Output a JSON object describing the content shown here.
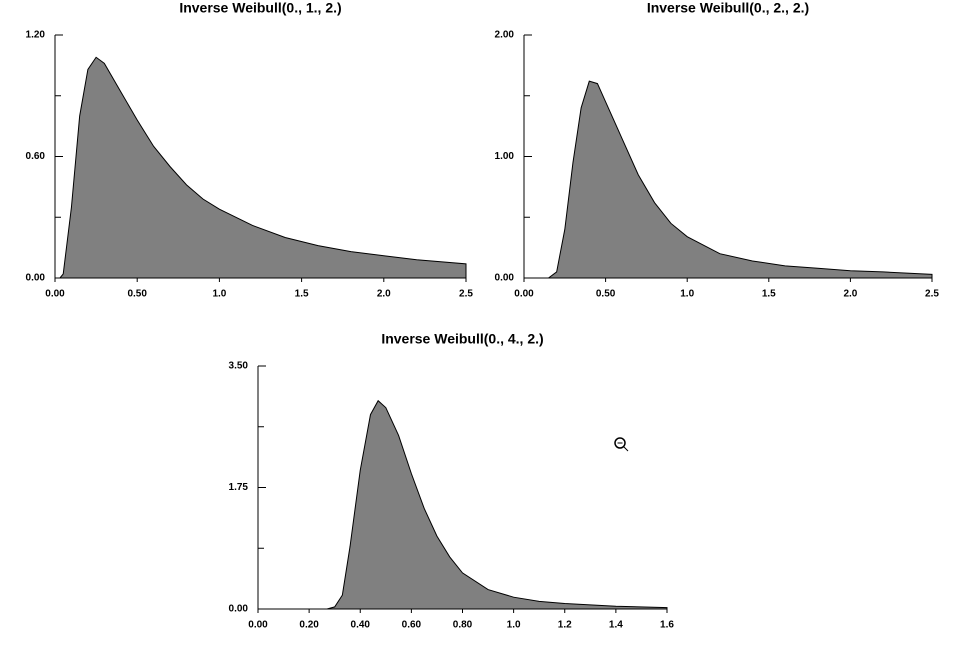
{
  "chart_data": [
    {
      "type": "area",
      "title": "Inverse Weibull(0., 1., 2.)",
      "color": "#808080",
      "x": [
        0.03,
        0.05,
        0.1,
        0.15,
        0.2,
        0.25,
        0.3,
        0.4,
        0.5,
        0.6,
        0.7,
        0.8,
        0.9,
        1.0,
        1.2,
        1.4,
        1.6,
        1.8,
        2.0,
        2.2,
        2.5
      ],
      "values": [
        0,
        0.02,
        0.35,
        0.8,
        1.03,
        1.09,
        1.06,
        0.92,
        0.78,
        0.65,
        0.55,
        0.46,
        0.39,
        0.34,
        0.26,
        0.2,
        0.16,
        0.13,
        0.11,
        0.09,
        0.07
      ],
      "xlim": [
        0,
        2.5
      ],
      "ylim": [
        0,
        1.2
      ],
      "xticks": [
        {
          "value": 0,
          "label": "0.00"
        },
        {
          "value": 0.5,
          "label": "0.50"
        },
        {
          "value": 1,
          "label": "1.0"
        },
        1.5,
        {
          "value": 2,
          "label": "2.0"
        },
        2.5
      ],
      "yticks": [
        {
          "value": 0,
          "label": "0.00"
        },
        {
          "value": 0.6,
          "label": "0.60"
        },
        {
          "value": 1.2,
          "label": "1.20"
        }
      ],
      "yminor": [
        0.3,
        0.9
      ]
    },
    {
      "type": "area",
      "title": "Inverse Weibull(0., 2., 2.)",
      "color": "#808080",
      "x": [
        0.15,
        0.2,
        0.25,
        0.3,
        0.35,
        0.4,
        0.45,
        0.5,
        0.6,
        0.7,
        0.8,
        0.9,
        1.0,
        1.2,
        1.4,
        1.6,
        1.8,
        2.0,
        2.2,
        2.5
      ],
      "values": [
        0,
        0.05,
        0.4,
        0.95,
        1.4,
        1.62,
        1.6,
        1.45,
        1.15,
        0.85,
        0.62,
        0.45,
        0.34,
        0.2,
        0.14,
        0.1,
        0.08,
        0.06,
        0.05,
        0.03
      ],
      "xlim": [
        0,
        2.5
      ],
      "ylim": [
        0,
        2
      ],
      "xticks": [
        {
          "value": 0,
          "label": "0.00"
        },
        {
          "value": 0.5,
          "label": "0.50"
        },
        {
          "value": 1,
          "label": "1.0"
        },
        1.5,
        {
          "value": 2,
          "label": "2.0"
        },
        2.5
      ],
      "yticks": [
        {
          "value": 0,
          "label": "0.00"
        },
        {
          "value": 1,
          "label": "1.00"
        },
        {
          "value": 2,
          "label": "2.00"
        }
      ],
      "yminor": [
        0.5,
        1.5
      ]
    },
    {
      "type": "area",
      "title": "Inverse Weibull(0., 4., 2.)",
      "color": "#808080",
      "x": [
        0.27,
        0.3,
        0.33,
        0.36,
        0.4,
        0.44,
        0.47,
        0.5,
        0.55,
        0.6,
        0.65,
        0.7,
        0.75,
        0.8,
        0.9,
        1.0,
        1.1,
        1.2,
        1.4,
        1.6
      ],
      "values": [
        0,
        0.03,
        0.2,
        0.9,
        2.0,
        2.8,
        3.0,
        2.9,
        2.5,
        1.95,
        1.45,
        1.05,
        0.75,
        0.52,
        0.28,
        0.17,
        0.11,
        0.08,
        0.04,
        0.02
      ],
      "xlim": [
        0,
        1.6
      ],
      "ylim": [
        0,
        3.5
      ],
      "xticks": [
        {
          "value": 0,
          "label": "0.00"
        },
        {
          "value": 0.2,
          "label": "0.20"
        },
        {
          "value": 0.4,
          "label": "0.40"
        },
        {
          "value": 0.6,
          "label": "0.60"
        },
        {
          "value": 0.8,
          "label": "0.80"
        },
        {
          "value": 1,
          "label": "1.0"
        },
        1.2,
        1.4,
        1.6
      ],
      "yticks": [
        {
          "value": 0,
          "label": "0.00"
        },
        {
          "value": 1.75,
          "label": "1.75"
        },
        {
          "value": 3.5,
          "label": "3.50"
        }
      ],
      "yminor": [
        0.875,
        2.625
      ]
    }
  ]
}
